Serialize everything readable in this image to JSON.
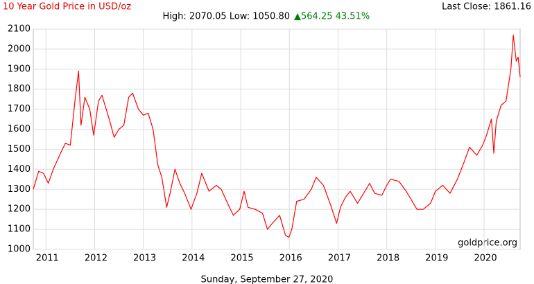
{
  "chart_data": {
    "type": "line",
    "title": "10 Year Gold Price in USD/oz",
    "high_low": "High: 2070.05 Low: 1050.80",
    "change": "▲564.25 43.51%",
    "last_close": "Last Close: 1861.16",
    "source": "goldprice.org",
    "date": "Sunday, September 27, 2020",
    "color": "#ff0000",
    "grid": true,
    "x": [
      2010.74,
      2010.85,
      2010.95,
      2011.05,
      2011.15,
      2011.3,
      2011.4,
      2011.5,
      2011.6,
      2011.67,
      2011.72,
      2011.8,
      2011.9,
      2011.98,
      2012.08,
      2012.15,
      2012.3,
      2012.4,
      2012.5,
      2012.6,
      2012.7,
      2012.78,
      2012.9,
      2013.0,
      2013.1,
      2013.2,
      2013.3,
      2013.38,
      2013.48,
      2013.55,
      2013.65,
      2013.75,
      2013.85,
      2013.98,
      2014.1,
      2014.2,
      2014.35,
      2014.5,
      2014.6,
      2014.75,
      2014.85,
      2014.98,
      2015.07,
      2015.15,
      2015.3,
      2015.45,
      2015.55,
      2015.65,
      2015.8,
      2015.92,
      2015.99,
      2016.05,
      2016.15,
      2016.3,
      2016.45,
      2016.55,
      2016.7,
      2016.85,
      2016.97,
      2017.05,
      2017.15,
      2017.25,
      2017.4,
      2017.5,
      2017.65,
      2017.75,
      2017.9,
      2018.0,
      2018.08,
      2018.25,
      2018.4,
      2018.5,
      2018.62,
      2018.75,
      2018.9,
      2019.0,
      2019.15,
      2019.3,
      2019.45,
      2019.58,
      2019.7,
      2019.85,
      2019.97,
      2020.05,
      2020.15,
      2020.2,
      2020.25,
      2020.35,
      2020.45,
      2020.55,
      2020.6,
      2020.66,
      2020.7,
      2020.74
    ],
    "values": [
      1300,
      1390,
      1380,
      1330,
      1400,
      1480,
      1530,
      1520,
      1750,
      1890,
      1620,
      1760,
      1700,
      1570,
      1740,
      1770,
      1650,
      1560,
      1600,
      1620,
      1760,
      1780,
      1700,
      1670,
      1680,
      1600,
      1420,
      1360,
      1210,
      1280,
      1400,
      1330,
      1280,
      1200,
      1280,
      1380,
      1290,
      1320,
      1300,
      1220,
      1170,
      1200,
      1290,
      1210,
      1200,
      1180,
      1100,
      1130,
      1170,
      1070,
      1060,
      1100,
      1240,
      1250,
      1300,
      1360,
      1320,
      1220,
      1130,
      1210,
      1260,
      1290,
      1230,
      1270,
      1330,
      1280,
      1270,
      1320,
      1350,
      1340,
      1290,
      1250,
      1200,
      1200,
      1230,
      1290,
      1320,
      1280,
      1350,
      1430,
      1510,
      1470,
      1520,
      1570,
      1650,
      1480,
      1640,
      1720,
      1740,
      1900,
      2070,
      1940,
      1960,
      1861.16
    ],
    "xlim": [
      2010.74,
      2020.74
    ],
    "xticks": [
      2011,
      2012,
      2013,
      2014,
      2015,
      2016,
      2017,
      2018,
      2019,
      2020
    ],
    "ylim": [
      1000,
      2100
    ],
    "yticks": [
      1000,
      1100,
      1200,
      1300,
      1400,
      1500,
      1600,
      1700,
      1800,
      1900,
      2000,
      2100
    ]
  }
}
